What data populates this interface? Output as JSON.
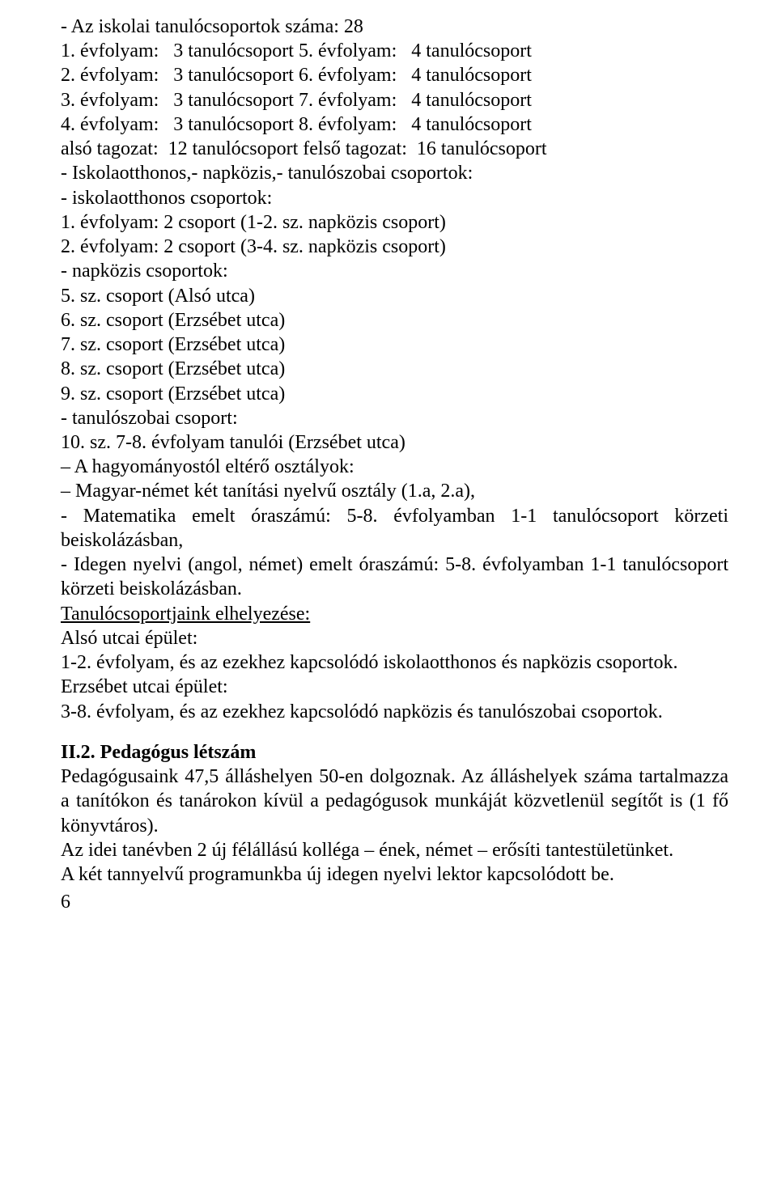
{
  "lines": [
    {
      "text": "- Az iskolai tanulócsoportok száma: 28"
    },
    {
      "text": "1. évfolyam:   3 tanulócsoport 5. évfolyam:   4 tanulócsoport"
    },
    {
      "text": "2. évfolyam:   3 tanulócsoport 6. évfolyam:   4 tanulócsoport"
    },
    {
      "text": "3. évfolyam:   3 tanulócsoport 7. évfolyam:   4 tanulócsoport"
    },
    {
      "text": "4. évfolyam:   3 tanulócsoport 8. évfolyam:   4 tanulócsoport"
    },
    {
      "text": "alsó tagozat:  12 tanulócsoport felső tagozat:  16 tanulócsoport"
    },
    {
      "text": "- Iskolaotthonos,- napközis,- tanulószobai csoportok:"
    },
    {
      "text": "- iskolaotthonos csoportok:"
    },
    {
      "text": "1. évfolyam: 2 csoport (1-2. sz. napközis csoport)"
    },
    {
      "text": "2. évfolyam: 2 csoport (3-4. sz. napközis csoport)"
    },
    {
      "text": "- napközis csoportok:"
    },
    {
      "text": "5. sz. csoport (Alsó utca)"
    },
    {
      "text": "6. sz. csoport (Erzsébet utca)"
    },
    {
      "text": "7. sz. csoport (Erzsébet utca)"
    },
    {
      "text": "8. sz. csoport (Erzsébet utca)"
    },
    {
      "text": "9. sz. csoport (Erzsébet utca)"
    },
    {
      "text": "- tanulószobai csoport:"
    },
    {
      "text": "10. sz. 7-8. évfolyam tanulói (Erzsébet utca)"
    },
    {
      "text": "– A hagyományostól eltérő osztályok:"
    },
    {
      "text": "– Magyar-német két tanítási nyelvű osztály (1.a, 2.a),"
    },
    {
      "text": "- Matematika emelt óraszámú: 5-8. évfolyamban 1-1 tanulócsoport körzeti beiskolázásban,",
      "justify": true
    },
    {
      "text": "- Idegen nyelvi (angol, német) emelt óraszámú: 5-8. évfolyamban 1-1 tanulócsoport körzeti beiskolázásban.",
      "justify": true
    },
    {
      "text": "Tanulócsoportjaink elhelyezése:",
      "underline": true
    },
    {
      "text": "Alsó utcai épület:"
    },
    {
      "text": "1-2. évfolyam, és az ezekhez kapcsolódó iskolaotthonos és napközis csoportok."
    },
    {
      "text": "Erzsébet utcai épület:"
    },
    {
      "text": "3-8. évfolyam, és az ezekhez kapcsolódó napközis és tanulószobai csoportok."
    },
    {
      "text": "II.2. Pedagógus létszám",
      "bold": true,
      "gapTop": true
    },
    {
      "text": "Pedagógusaink 47,5 álláshelyen 50-en dolgoznak. Az álláshelyek száma tartalmazza a tanítókon és tanárokon kívül a pedagógusok munkáját közvetlenül segítőt is (1 fő könyvtáros).",
      "justify": true
    },
    {
      "text": "Az idei tanévben 2 új félállású kolléga – ének, német – erősíti tantestületünket."
    },
    {
      "text": "A két tannyelvű programunkba új idegen nyelvi lektor kapcsolódott be."
    }
  ],
  "pageNumber": "6"
}
